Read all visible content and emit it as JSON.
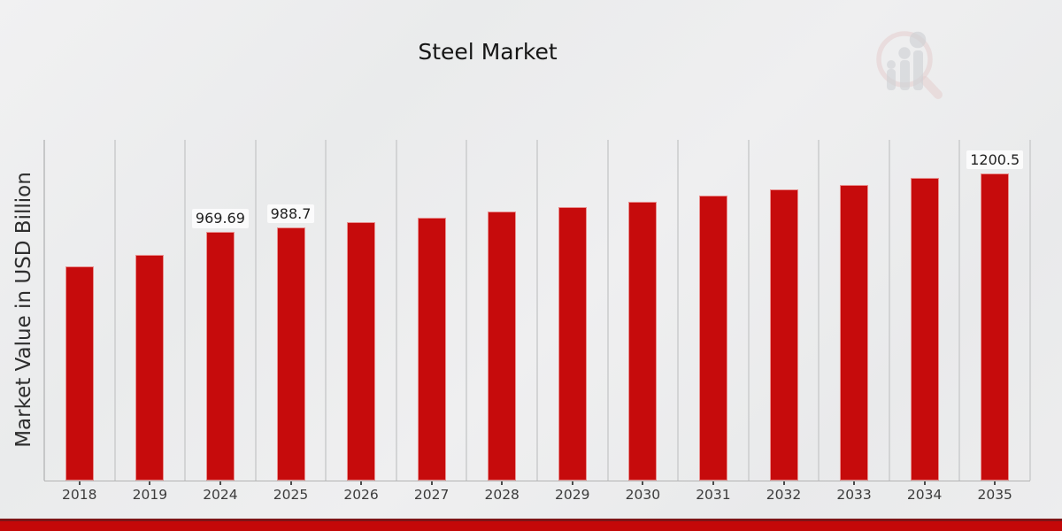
{
  "title": "Steel Market",
  "chart_data": {
    "type": "bar",
    "title": "Steel Market",
    "xlabel": "",
    "ylabel": "Market Value in USD Billion",
    "categories": [
      "2018",
      "2019",
      "2024",
      "2025",
      "2026",
      "2027",
      "2028",
      "2029",
      "2030",
      "2031",
      "2032",
      "2033",
      "2034",
      "2035"
    ],
    "values": [
      836,
      881,
      969.69,
      988.7,
      1008,
      1028,
      1051,
      1068,
      1090,
      1111,
      1136,
      1155,
      1182,
      1200.5
    ],
    "value_labels": {
      "2024": "969.69",
      "2025": "988.7",
      "2035": "1200.5"
    },
    "ylim": [
      0,
      1330
    ],
    "y_ticks_shown": false,
    "grid": "vertical",
    "legend": "none",
    "bar_color": "#c60b0c",
    "bar_edge_color": "#e9908f"
  },
  "colors": {
    "background": "#ebecee",
    "gridline": "#d3d4d5",
    "axis_line": "#b3b3b3",
    "tick": "#4a4a4a",
    "title_text": "#161616",
    "tick_label_text": "#3c3c3c",
    "value_label_text": "#1f1f1f",
    "footer_band": "#c40808",
    "footer_band_edge": "#7d1517",
    "watermark_pink": "#dcb4b4",
    "watermark_gray": "#b9bcc2"
  },
  "footer": {
    "text": ""
  },
  "watermark": {
    "icon": "magnifier-bar-chart-logo"
  }
}
